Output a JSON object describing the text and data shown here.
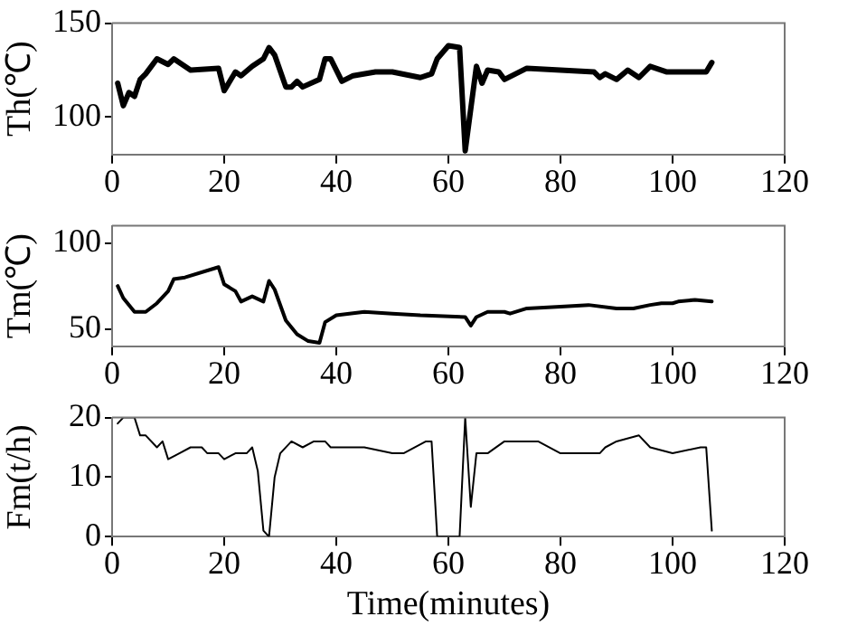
{
  "chart_data": [
    {
      "type": "line",
      "ylabel": "Th(℃)",
      "x": [
        1,
        2,
        3,
        4,
        5,
        6,
        8,
        10,
        11,
        14,
        19,
        20,
        22,
        23,
        25,
        27,
        28,
        29,
        31,
        32,
        33,
        34,
        37,
        38,
        39,
        41,
        43,
        47,
        50,
        55,
        57,
        58,
        60,
        62,
        63,
        65,
        66,
        67,
        69,
        70,
        72,
        74,
        80,
        86,
        87,
        88,
        90,
        92,
        94,
        96,
        99,
        106,
        107
      ],
      "series": [
        {
          "color": "#000000",
          "values": [
            118,
            106,
            113,
            111,
            120,
            123,
            131,
            128,
            131,
            125,
            126,
            114,
            124,
            122,
            127,
            131,
            137,
            133,
            116,
            116,
            119,
            116,
            120,
            131,
            131,
            119,
            122,
            124,
            124,
            121,
            123,
            131,
            138,
            137,
            82,
            127,
            118,
            125,
            124,
            120,
            123,
            126,
            125,
            124,
            121,
            123,
            120,
            125,
            121,
            127,
            124,
            124,
            129
          ]
        }
      ],
      "xlim": [
        0,
        120
      ],
      "xticks": [
        0,
        20,
        40,
        60,
        80,
        100,
        120
      ],
      "ylim": [
        80,
        150
      ],
      "yticks": [
        100,
        150
      ],
      "grid": false,
      "marker": "none",
      "line_style": "solid"
    },
    {
      "type": "line",
      "ylabel": "Tm(℃)",
      "x": [
        1,
        2,
        4,
        6,
        8,
        10,
        11,
        13,
        19,
        20,
        22,
        23,
        25,
        27,
        28,
        29,
        31,
        33,
        35,
        37,
        38,
        40,
        45,
        50,
        55,
        63,
        64,
        65,
        67,
        70,
        71,
        74,
        80,
        85,
        90,
        93,
        96,
        98,
        100,
        101,
        104,
        107
      ],
      "series": [
        {
          "color": "#000000",
          "values": [
            75,
            68,
            60,
            60,
            65,
            72,
            79,
            80,
            86,
            76,
            72,
            66,
            69,
            66,
            78,
            73,
            55,
            47,
            43,
            42,
            54,
            58,
            60,
            59,
            58,
            57,
            52,
            57,
            60,
            60,
            59,
            62,
            63,
            64,
            62,
            62,
            64,
            65,
            65,
            66,
            67,
            66
          ]
        }
      ],
      "xlim": [
        0,
        120
      ],
      "xticks": [
        0,
        20,
        40,
        60,
        80,
        100,
        120
      ],
      "ylim": [
        40,
        110
      ],
      "yticks": [
        50,
        100
      ],
      "grid": false,
      "marker": "none",
      "line_style": "solid"
    },
    {
      "type": "line",
      "ylabel": "Fm(t/h)",
      "xlabel": "Time(minutes)",
      "x": [
        1,
        2,
        4,
        5,
        6,
        8,
        9,
        10,
        12,
        14,
        16,
        17,
        19,
        20,
        22,
        23,
        24,
        25,
        26,
        27,
        28,
        29,
        30,
        32,
        34,
        36,
        38,
        39,
        40,
        45,
        50,
        52,
        56,
        57,
        58,
        60,
        62,
        63,
        64,
        65,
        67,
        70,
        72,
        75,
        76,
        80,
        85,
        87,
        88,
        90,
        94,
        96,
        100,
        105,
        106,
        107
      ],
      "series": [
        {
          "color": "#000000",
          "values": [
            19,
            20,
            20,
            17,
            17,
            15,
            16,
            13,
            14,
            15,
            15,
            14,
            14,
            13,
            14,
            14,
            14,
            15,
            11,
            1,
            0,
            10,
            14,
            16,
            15,
            16,
            16,
            15,
            15,
            15,
            14,
            14,
            16,
            16,
            0,
            0,
            0,
            20,
            5,
            14,
            14,
            16,
            16,
            16,
            16,
            14,
            14,
            14,
            15,
            16,
            17,
            15,
            14,
            15,
            15,
            1
          ]
        }
      ],
      "xlim": [
        0,
        120
      ],
      "xticks": [
        0,
        20,
        40,
        60,
        80,
        100,
        120
      ],
      "ylim": [
        0,
        20
      ],
      "yticks": [
        0,
        10,
        20
      ],
      "grid": false,
      "marker": "none",
      "line_style": "solid"
    }
  ]
}
